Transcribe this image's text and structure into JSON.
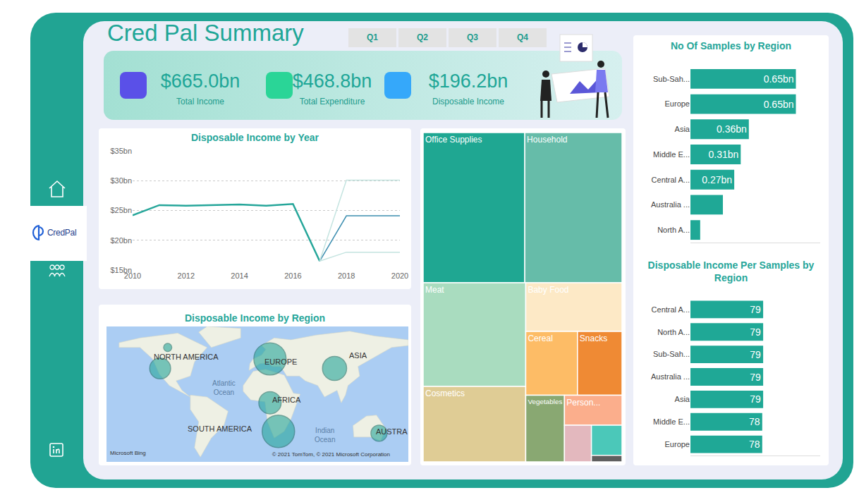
{
  "header": {
    "title": "Cred Pal Summary",
    "filters": [
      "Q1",
      "Q2",
      "Q3",
      "Q4"
    ],
    "logo": "CredPal"
  },
  "kpis": [
    {
      "value": "$665.0bn",
      "label": "Total Income",
      "color": "#5a50e8"
    },
    {
      "value": "$468.8bn",
      "label": "Total Expenditure",
      "color": "#2ad597"
    },
    {
      "value": "$196.2bn",
      "label": "Disposable Income",
      "color": "#35a8fa"
    }
  ],
  "chart_data": [
    {
      "type": "line",
      "title": "Disposable Income by Year",
      "x": [
        2010,
        2011,
        2012,
        2013,
        2014,
        2015,
        2016,
        2017,
        2018,
        2019,
        2020
      ],
      "series": [
        {
          "color": "#26a69a",
          "values": [
            24.2,
            25.9,
            25.8,
            25.9,
            26.0,
            25.8,
            26.1,
            16.5,
            null,
            null,
            null
          ]
        },
        {
          "color": "#3d8eb0",
          "values": [
            null,
            null,
            null,
            null,
            null,
            null,
            null,
            16.5,
            24.1,
            24.1,
            24.1
          ]
        },
        {
          "color": "#c4e4e0",
          "values": [
            null,
            null,
            null,
            null,
            null,
            null,
            null,
            16.5,
            30.1,
            30.1,
            30.1
          ]
        },
        {
          "color": "#c4e4e0",
          "values": [
            null,
            null,
            null,
            null,
            null,
            null,
            null,
            16.5,
            18.0,
            18.0,
            18.0
          ]
        }
      ],
      "xlim": [
        2010,
        2020
      ],
      "xticks": [
        2010,
        2012,
        2014,
        2016,
        2018,
        2020
      ],
      "ylim": [
        15,
        35
      ],
      "yticks": [
        {
          "value": 15,
          "label": "$15bn"
        },
        {
          "value": 20,
          "label": "$20bn"
        },
        {
          "value": 25,
          "label": "$25bn"
        },
        {
          "value": 30,
          "label": "$30bn"
        },
        {
          "value": 35,
          "label": "$35bn"
        }
      ],
      "grid": true
    },
    {
      "type": "bubble",
      "title": "Disposable Income by Region",
      "x": [
        -107,
        -116,
        15,
        92,
        15,
        25,
        145
      ],
      "y": [
        60,
        38,
        48,
        38,
        2,
        -28,
        -30
      ],
      "size": [
        3.2,
        21.3,
        50.7,
        28.4,
        24.2,
        51.4,
        12.6
      ],
      "color": "#26a69a",
      "xlim": [
        -180,
        180
      ],
      "ylim": [
        -60,
        82
      ],
      "tick_labels": false,
      "annotations": [
        {
          "lines": [
            "NORTH AMERICA"
          ],
          "x": -85,
          "y": 50
        },
        {
          "lines": [
            "EUROPE"
          ],
          "x": 28,
          "y": 45
        },
        {
          "lines": [
            "ASIA"
          ],
          "x": 120,
          "y": 52
        },
        {
          "lines": [
            "Atlantic",
            "Ocean"
          ],
          "x": -40,
          "y": 18
        },
        {
          "lines": [
            "AFRICA"
          ],
          "x": 35,
          "y": 5
        },
        {
          "lines": [
            "SOUTH AMERICA"
          ],
          "x": -45,
          "y": -25
        },
        {
          "lines": [
            "Indian",
            "Ocean"
          ],
          "x": 80,
          "y": -32
        },
        {
          "lines": [
            "AUSTRA"
          ],
          "x": 160,
          "y": -28
        }
      ],
      "credits": [
        "Microsoft Bing",
        "© 2021 TomTom, © 2021 Microsoft Corporation"
      ]
    },
    {
      "type": "treemap",
      "categories": [
        "Office Supplies",
        "Household",
        "Meat",
        "Cosmetics",
        "Baby Food",
        "Cereal",
        "Snacks",
        "Vegetables",
        "Person...",
        null,
        null,
        null
      ],
      "values": [
        23.1,
        22.1,
        16.1,
        11.7,
        7.1,
        5.0,
        4.3,
        3.9,
        2.6,
        1.5,
        1.4,
        0.3
      ],
      "colors": [
        "#1fa792",
        "#66bca9",
        "#a9dcbf",
        "#dfcc95",
        "#fde9c6",
        "#fdbc66",
        "#ef8a34",
        "#89a872",
        "#fbae8c",
        "#e3b8be",
        "#4bc8b9",
        "#5f5f5f"
      ]
    },
    {
      "type": "bar",
      "orientation": "horizontal",
      "title": "No Of Samples by Region",
      "categories": [
        "Sub-Sah...",
        "Europe",
        "Asia",
        "Middle E...",
        "Central A...",
        "Australia ...",
        "North A..."
      ],
      "values": [
        0.65,
        0.65,
        0.36,
        0.31,
        0.27,
        0.2,
        0.06
      ],
      "value_labels": [
        "0.65bn",
        "0.65bn",
        "0.36bn",
        "0.31bn",
        "0.27bn",
        null,
        null
      ],
      "data_labels": true,
      "color": "#1fa896",
      "xlim": [
        0,
        0.8
      ],
      "tick_labels": "y"
    },
    {
      "type": "bar",
      "orientation": "horizontal",
      "title": "Disposable Income Per Samples by Region",
      "categories": [
        "Central A...",
        "North A...",
        "Sub-Sah...",
        "Australia ...",
        "Asia",
        "Middle E...",
        "Europe"
      ],
      "values": [
        79,
        79,
        79,
        79,
        79,
        78,
        78
      ],
      "data_labels": true,
      "color": "#1fa896",
      "xlim": [
        0,
        141
      ],
      "tick_labels": "y"
    }
  ]
}
